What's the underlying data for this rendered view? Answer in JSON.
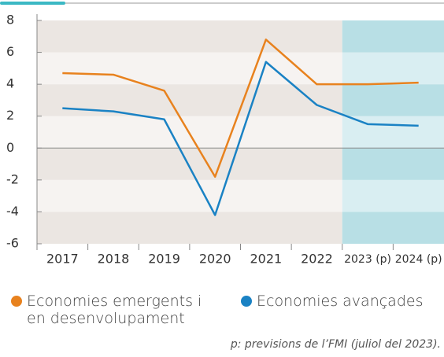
{
  "chart_data": {
    "type": "line",
    "categories": [
      "2017",
      "2018",
      "2019",
      "2020",
      "2021",
      "2022",
      "2023 (p)",
      "2024 (p)"
    ],
    "series": [
      {
        "name": "Economies emergents i en desenvolupament",
        "color": "#e8821e",
        "values": [
          4.7,
          4.6,
          3.6,
          -1.8,
          6.8,
          4.0,
          4.0,
          4.1
        ]
      },
      {
        "name": "Economies avançades",
        "color": "#1a82c4",
        "values": [
          2.5,
          2.3,
          1.8,
          -4.2,
          5.4,
          2.7,
          1.5,
          1.4
        ]
      }
    ],
    "ylim": [
      -6,
      8
    ],
    "yticks": [
      -6,
      -4,
      -2,
      0,
      2,
      4,
      6,
      8
    ],
    "note": "p: previsions de l’FMI (juliol del 2023)."
  }
}
